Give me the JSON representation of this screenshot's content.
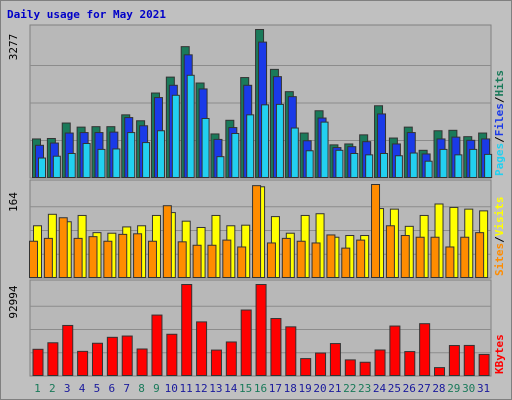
{
  "title": "Daily usage for May 2021",
  "colors": {
    "background": "#c0c0c0",
    "panel": "#b8b8b8",
    "hits": "#1a7a5a",
    "files": "#1a3ae8",
    "pages": "#22d0f0",
    "visits": "#ffff00",
    "sites": "#ff8c00",
    "kbytes": "#ff0000",
    "weekend_day": "#1a7a5a",
    "weekday": "#1a1a9c"
  },
  "chart_data": [
    {
      "type": "bar",
      "panel": "hits-files-pages",
      "categories": [
        "1",
        "2",
        "3",
        "4",
        "5",
        "6",
        "7",
        "8",
        "9",
        "10",
        "11",
        "12",
        "13",
        "14",
        "15",
        "16",
        "17",
        "18",
        "19",
        "20",
        "21",
        "22",
        "23",
        "24",
        "25",
        "26",
        "27",
        "28",
        "29",
        "30",
        "31"
      ],
      "ymax_label": "3277",
      "ymax": 3277,
      "axis_legend": [
        "Pages",
        "/",
        "Files",
        "/",
        "Hits"
      ],
      "series": [
        {
          "name": "Hits",
          "values": [
            870,
            880,
            1220,
            1130,
            1140,
            1140,
            1400,
            1270,
            1880,
            2230,
            2900,
            2100,
            980,
            1280,
            2220,
            3277,
            2400,
            1910,
            1000,
            1490,
            740,
            760,
            960,
            1600,
            890,
            1130,
            620,
            1050,
            1060,
            920,
            1000
          ]
        },
        {
          "name": "Files",
          "values": [
            730,
            780,
            1000,
            1010,
            1010,
            1020,
            1340,
            1160,
            1780,
            2050,
            2720,
            1970,
            860,
            1120,
            2050,
            3000,
            2240,
            1800,
            830,
            1330,
            680,
            700,
            810,
            1420,
            760,
            1010,
            540,
            870,
            910,
            840,
            870
          ]
        },
        {
          "name": "Pages",
          "values": [
            450,
            490,
            550,
            770,
            640,
            650,
            1010,
            790,
            1050,
            1830,
            2270,
            1320,
            480,
            990,
            1400,
            1620,
            1630,
            1110,
            610,
            1240,
            620,
            550,
            520,
            550,
            500,
            560,
            380,
            640,
            520,
            640,
            530
          ]
        }
      ]
    },
    {
      "type": "bar",
      "panel": "visits-sites",
      "categories": [
        "1",
        "2",
        "3",
        "4",
        "5",
        "6",
        "7",
        "8",
        "9",
        "10",
        "11",
        "12",
        "13",
        "14",
        "15",
        "16",
        "17",
        "18",
        "19",
        "20",
        "21",
        "22",
        "23",
        "24",
        "25",
        "26",
        "27",
        "28",
        "29",
        "30",
        "31"
      ],
      "ymax_label": "164",
      "ymax": 164,
      "axis_legend": [
        "Sites",
        "/",
        "Visits"
      ],
      "series": [
        {
          "name": "Visits",
          "values": [
            92,
            112,
            99,
            110,
            80,
            79,
            90,
            92,
            110,
            115,
            100,
            89,
            110,
            92,
            93,
            160,
            108,
            79,
            110,
            113,
            72,
            75,
            75,
            122,
            121,
            91,
            110,
            130,
            124,
            121,
            118
          ]
        },
        {
          "name": "Sites",
          "values": [
            65,
            70,
            106,
            70,
            73,
            65,
            77,
            78,
            65,
            127,
            64,
            58,
            58,
            67,
            55,
            162,
            62,
            70,
            65,
            62,
            76,
            53,
            67,
            164,
            92,
            75,
            72,
            72,
            55,
            72,
            80
          ]
        }
      ]
    },
    {
      "type": "bar",
      "panel": "kbytes",
      "categories": [
        "1",
        "2",
        "3",
        "4",
        "5",
        "6",
        "7",
        "8",
        "9",
        "10",
        "11",
        "12",
        "13",
        "14",
        "15",
        "16",
        "17",
        "18",
        "19",
        "20",
        "21",
        "22",
        "23",
        "24",
        "25",
        "26",
        "27",
        "28",
        "29",
        "30",
        "31"
      ],
      "ymax_label": "92994",
      "ymax": 92994,
      "axis_legend": [
        "KBytes"
      ],
      "series": [
        {
          "name": "KBytes",
          "values": [
            27500,
            34100,
            51600,
            25400,
            33600,
            39600,
            40900,
            27800,
            62100,
            42700,
            92994,
            55200,
            26700,
            34900,
            67200,
            92994,
            58600,
            50200,
            18100,
            23700,
            33300,
            16800,
            14400,
            26800,
            51000,
            25200,
            53400,
            9000,
            31300,
            31400,
            22300
          ]
        }
      ]
    }
  ]
}
